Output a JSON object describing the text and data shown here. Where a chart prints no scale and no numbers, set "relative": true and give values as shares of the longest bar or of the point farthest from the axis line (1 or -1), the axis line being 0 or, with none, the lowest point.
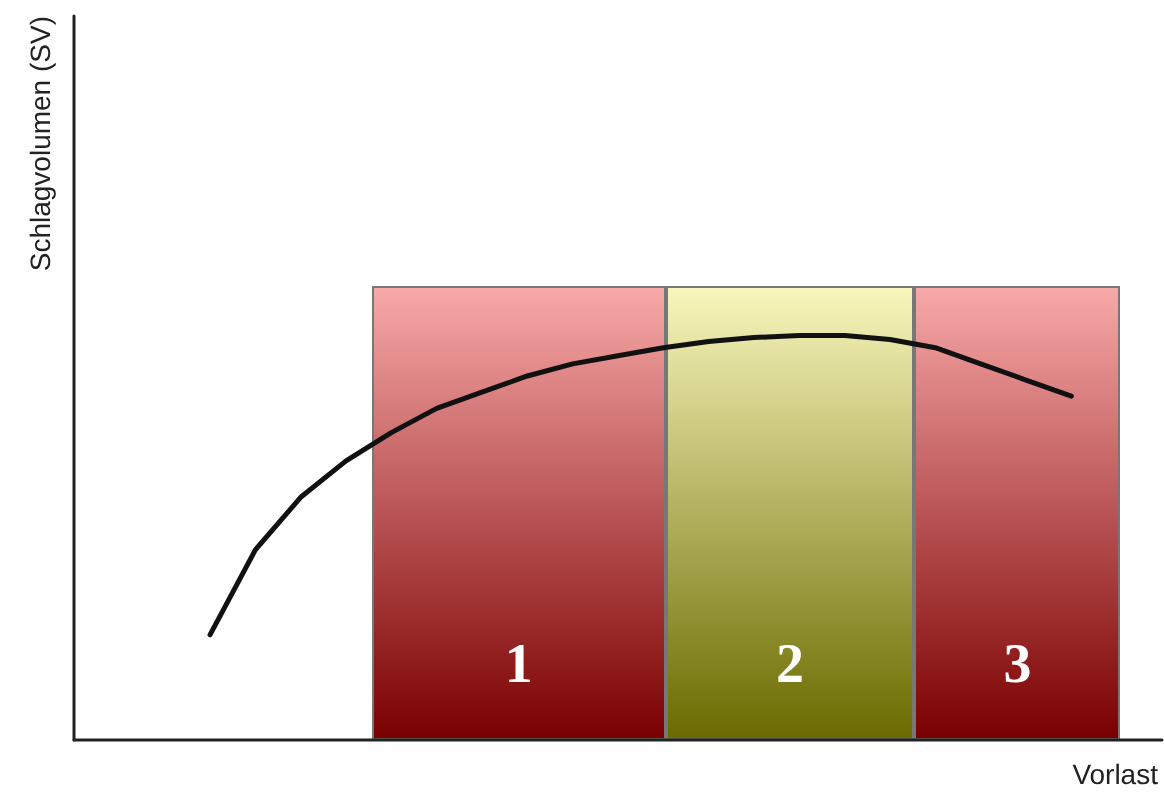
{
  "chart_data": {
    "type": "line",
    "relative": true,
    "xlabel": "Vorlast",
    "ylabel": "Schlagvolumen (SV)",
    "tick_labels": false,
    "grid": false,
    "marker": "none",
    "line_style": "solid",
    "categories": [
      null,
      null,
      null,
      null,
      null,
      null,
      null,
      null,
      null,
      null,
      null,
      null,
      null,
      null,
      null,
      null,
      null,
      null,
      null,
      null,
      null,
      null,
      null,
      null,
      null
    ],
    "series": [
      {
        "color": "#111111",
        "values": [
          null,
          null,
          null,
          0.26,
          0.47,
          0.6,
          0.69,
          0.76,
          0.82,
          0.86,
          0.9,
          0.93,
          0.95,
          0.97,
          0.985,
          0.995,
          1,
          1,
          0.99,
          0.97,
          0.93,
          0.89,
          0.85,
          null,
          null
        ]
      }
    ],
    "annotations": [
      "1",
      "2",
      "3"
    ]
  }
}
